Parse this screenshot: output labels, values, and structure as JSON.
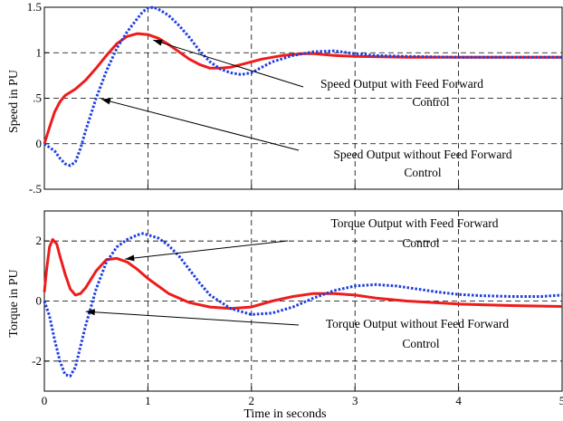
{
  "chart_data": [
    {
      "type": "line",
      "ylabel": "Speed in PU",
      "xlim": [
        0,
        5
      ],
      "ylim": [
        -0.5,
        1.5
      ],
      "xticks": [
        "0",
        "1",
        "2",
        "3",
        "4",
        "5"
      ],
      "yticks": [
        {
          "v": -0.5,
          "label": "-.5"
        },
        {
          "v": 0,
          "label": "0"
        },
        {
          "v": 0.5,
          "label": ".5"
        },
        {
          "v": 1,
          "label": "1"
        },
        {
          "v": 1.5,
          "label": "1.5"
        }
      ],
      "grid": true,
      "series": [
        {
          "color": "#ee1c1c",
          "style": "solid",
          "x": [
            0,
            0.05,
            0.1,
            0.15,
            0.2,
            0.3,
            0.4,
            0.5,
            0.6,
            0.7,
            0.8,
            0.9,
            1.0,
            1.1,
            1.2,
            1.3,
            1.4,
            1.5,
            1.6,
            1.7,
            1.8,
            1.9,
            2.0,
            2.1,
            2.2,
            2.3,
            2.4,
            2.5,
            2.6,
            2.7,
            2.8,
            3.0,
            3.5,
            4.0,
            4.5,
            5.0
          ],
          "y": [
            0,
            0.18,
            0.35,
            0.46,
            0.53,
            0.6,
            0.7,
            0.83,
            0.97,
            1.1,
            1.18,
            1.21,
            1.2,
            1.16,
            1.09,
            1.01,
            0.93,
            0.87,
            0.83,
            0.83,
            0.84,
            0.87,
            0.9,
            0.93,
            0.95,
            0.97,
            0.98,
            0.99,
            0.99,
            0.98,
            0.97,
            0.96,
            0.95,
            0.95,
            0.95,
            0.95
          ]
        },
        {
          "color": "#1f3ee0",
          "style": "dotted",
          "x": [
            0,
            0.1,
            0.15,
            0.2,
            0.25,
            0.3,
            0.35,
            0.4,
            0.5,
            0.6,
            0.7,
            0.8,
            0.9,
            0.95,
            1.0,
            1.05,
            1.1,
            1.2,
            1.3,
            1.4,
            1.5,
            1.6,
            1.7,
            1.8,
            1.9,
            2.0,
            2.1,
            2.2,
            2.4,
            2.6,
            2.8,
            3.0,
            3.2,
            3.5,
            4.0,
            4.5,
            5.0
          ],
          "y": [
            0,
            -0.08,
            -0.16,
            -0.22,
            -0.24,
            -0.2,
            -0.05,
            0.15,
            0.5,
            0.8,
            1.05,
            1.23,
            1.38,
            1.45,
            1.49,
            1.5,
            1.48,
            1.41,
            1.3,
            1.17,
            1.02,
            0.9,
            0.82,
            0.78,
            0.76,
            0.78,
            0.84,
            0.9,
            0.97,
            1.01,
            1.02,
            0.99,
            0.97,
            0.96,
            0.95,
            0.95,
            0.95
          ]
        }
      ],
      "annotations": [
        {
          "text": [
            "Speed Output with Feed Forward",
            "Control"
          ],
          "xy": [
            1.05,
            1.14
          ]
        },
        {
          "text": [
            "Speed Output without Feed Forward",
            "Control"
          ],
          "xy": [
            0.55,
            0.49
          ]
        }
      ]
    },
    {
      "type": "line",
      "ylabel": "Torque in PU",
      "xlabel": "Time in seconds",
      "xlim": [
        0,
        5
      ],
      "ylim": [
        -3,
        3
      ],
      "xticks": [
        "0",
        "1",
        "2",
        "3",
        "4",
        "5"
      ],
      "yticks": [
        {
          "v": -2,
          "label": "-2"
        },
        {
          "v": 0,
          "label": "0"
        },
        {
          "v": 2,
          "label": "2"
        }
      ],
      "grid": true,
      "series": [
        {
          "color": "#ee1c1c",
          "style": "solid",
          "x": [
            0,
            0.02,
            0.05,
            0.08,
            0.12,
            0.15,
            0.2,
            0.25,
            0.3,
            0.35,
            0.4,
            0.5,
            0.6,
            0.7,
            0.8,
            0.9,
            1.0,
            1.2,
            1.4,
            1.6,
            1.8,
            2.0,
            2.2,
            2.4,
            2.6,
            2.8,
            3.0,
            3.2,
            3.5,
            4.0,
            4.5,
            5.0
          ],
          "y": [
            0.3,
            1.0,
            1.8,
            2.05,
            1.9,
            1.5,
            0.9,
            0.4,
            0.2,
            0.25,
            0.45,
            1.0,
            1.38,
            1.42,
            1.3,
            1.05,
            0.75,
            0.25,
            -0.05,
            -0.2,
            -0.25,
            -0.2,
            0.0,
            0.15,
            0.25,
            0.25,
            0.2,
            0.1,
            0.0,
            -0.1,
            -0.15,
            -0.18
          ]
        },
        {
          "color": "#1f3ee0",
          "style": "dotted",
          "x": [
            0,
            0.05,
            0.1,
            0.15,
            0.2,
            0.25,
            0.3,
            0.35,
            0.4,
            0.5,
            0.6,
            0.7,
            0.8,
            0.9,
            0.95,
            1.0,
            1.1,
            1.2,
            1.3,
            1.4,
            1.5,
            1.6,
            1.8,
            2.0,
            2.2,
            2.4,
            2.6,
            2.8,
            3.0,
            3.2,
            3.4,
            3.6,
            3.8,
            4.0,
            4.2,
            4.5,
            4.8,
            5.0
          ],
          "y": [
            0,
            -0.5,
            -1.3,
            -2.0,
            -2.45,
            -2.5,
            -2.2,
            -1.5,
            -0.8,
            0.4,
            1.3,
            1.8,
            2.05,
            2.2,
            2.25,
            2.2,
            2.1,
            1.85,
            1.5,
            1.05,
            0.6,
            0.2,
            -0.25,
            -0.45,
            -0.4,
            -0.2,
            0.1,
            0.35,
            0.5,
            0.55,
            0.5,
            0.4,
            0.3,
            0.22,
            0.18,
            0.15,
            0.15,
            0.2
          ]
        }
      ],
      "annotations": [
        {
          "text": [
            "Torque Output with Feed Forward",
            "Control"
          ],
          "xy": [
            0.78,
            1.4
          ]
        },
        {
          "text": [
            "Torque Output without Feed Forward",
            "Control"
          ],
          "xy": [
            0.4,
            -0.35
          ]
        }
      ]
    }
  ]
}
